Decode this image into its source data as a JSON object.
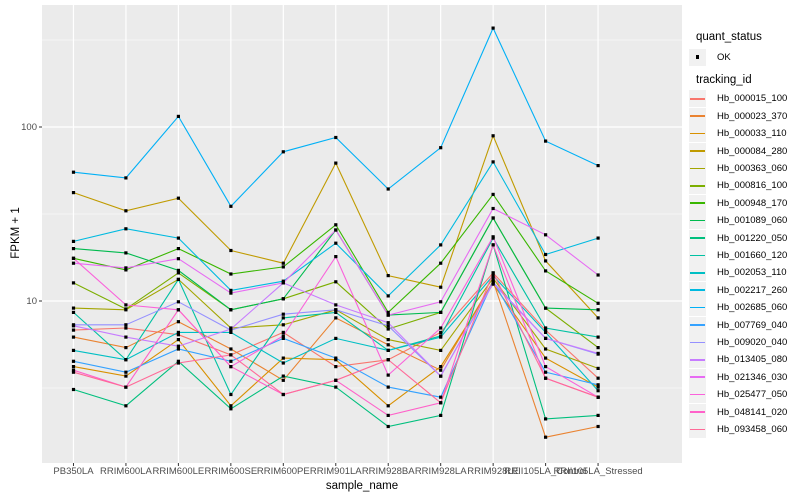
{
  "colors": {
    "page_bg": "#FFFFFF",
    "panel_bg": "#EBEBEB",
    "grid": "#FFFFFF",
    "axis_text": "#4D4D4D",
    "tick_mark": "#333333",
    "point": "#000000",
    "legend_key_bg": "#F1F1F1"
  },
  "legend": {
    "quant_status_title": "quant_status",
    "quant_status_items": [
      {
        "label": "OK",
        "marker": "black-point"
      }
    ],
    "tracking_title": "tracking_id"
  },
  "chart_data": {
    "type": "line",
    "title": "",
    "xlabel": "sample_name",
    "ylabel": "FPKM + 1",
    "y_scale": "log10",
    "y_ticks": [
      10,
      100
    ],
    "y_tick_labels": [
      "10",
      "100"
    ],
    "y_minor_ticks": [
      3.162,
      31.62,
      316.2
    ],
    "ylim": [
      1.17,
      500
    ],
    "grid": "on",
    "legend_position": "right",
    "point_marker": "small-black-square",
    "categories": [
      "PB350LA",
      "RRIM600LA",
      "RRIM600LE",
      "RRIM600SE",
      "RRIM600PE",
      "RRIM901LA",
      "RRIM928BA",
      "RRIM928LA",
      "RRIM928LE",
      "RRII105LA_Control",
      "RRII105LA_Stressed"
    ],
    "series": [
      {
        "name": "Hb_000015_100",
        "color": "#F8766D",
        "values": [
          6.8,
          7.0,
          6.4,
          4.9,
          6.6,
          4.2,
          4.6,
          6.6,
          14.5,
          6.8,
          3.6
        ]
      },
      {
        "name": "Hb_000023_370",
        "color": "#EA8331",
        "values": [
          6.2,
          5.4,
          7.6,
          5.3,
          3.5,
          8.0,
          5.6,
          4.0,
          13.0,
          1.65,
          1.9
        ]
      },
      {
        "name": "Hb_000033_110",
        "color": "#D89000",
        "values": [
          4.2,
          3.7,
          6.0,
          2.5,
          4.7,
          4.6,
          2.5,
          4.2,
          12.5,
          4.7,
          3.2
        ]
      },
      {
        "name": "Hb_000084_280",
        "color": "#C09B00",
        "values": [
          42,
          33,
          39,
          19.5,
          16.5,
          62,
          14,
          12,
          89,
          17,
          8.0
        ]
      },
      {
        "name": "Hb_000363_060",
        "color": "#A3A500",
        "values": [
          9.1,
          8.9,
          13.3,
          7.0,
          7.3,
          8.9,
          6.0,
          5.2,
          13.5,
          5.3,
          4.1
        ]
      },
      {
        "name": "Hb_000816_100",
        "color": "#7CAE00",
        "values": [
          12.7,
          9.0,
          14.5,
          8.9,
          10.3,
          12.9,
          6.9,
          8.6,
          30,
          9.1,
          5.4
        ]
      },
      {
        "name": "Hb_000948_170",
        "color": "#39B600",
        "values": [
          17.6,
          15.1,
          20,
          14.3,
          15.7,
          27.4,
          8.6,
          16.5,
          41,
          14.9,
          9.7
        ]
      },
      {
        "name": "Hb_001089_060",
        "color": "#00BB4E",
        "values": [
          20,
          18.9,
          15.0,
          8.9,
          10.3,
          25.6,
          8.3,
          8.6,
          30,
          9.1,
          8.9
        ]
      },
      {
        "name": "Hb_001220_050",
        "color": "#00BF7D",
        "values": [
          3.1,
          2.5,
          4.5,
          2.4,
          3.7,
          3.2,
          1.9,
          2.2,
          21,
          2.1,
          2.2
        ]
      },
      {
        "name": "Hb_001660_120",
        "color": "#00C1A3",
        "values": [
          8.6,
          4.6,
          13.3,
          2.9,
          8.0,
          8.6,
          5.2,
          6.3,
          23,
          7.0,
          6.2
        ]
      },
      {
        "name": "Hb_002053_110",
        "color": "#00BFC4",
        "values": [
          5.2,
          4.6,
          6.6,
          6.6,
          4.4,
          6.1,
          5.2,
          6.2,
          14,
          6.6,
          3.05
        ]
      },
      {
        "name": "Hb_002217_260",
        "color": "#00BAE0",
        "values": [
          22,
          26,
          23,
          11.5,
          13,
          21.5,
          10.7,
          21,
          63,
          18.5,
          23
        ]
      },
      {
        "name": "Hb_002685_060",
        "color": "#00B0F6",
        "values": [
          55,
          51,
          115,
          35,
          72,
          87,
          44,
          76,
          370,
          83,
          60
        ]
      },
      {
        "name": "Hb_007769_040",
        "color": "#35A2FF",
        "values": [
          4.5,
          3.9,
          5.3,
          4.5,
          6.1,
          4.7,
          3.2,
          2.8,
          13,
          3.9,
          3.3
        ]
      },
      {
        "name": "Hb_009020_040",
        "color": "#9590FF",
        "values": [
          7.3,
          7.3,
          9.9,
          6.8,
          8.4,
          8.9,
          7.2,
          3.7,
          12.8,
          6.1,
          4.95
        ]
      },
      {
        "name": "Hb_013405_080",
        "color": "#C77CFF",
        "values": [
          7.2,
          6.2,
          5.5,
          6.9,
          12.7,
          9.5,
          7.5,
          3.7,
          12.6,
          6.1,
          5.0
        ]
      },
      {
        "name": "Hb_021346_030",
        "color": "#E76BF3",
        "values": [
          16.5,
          15.5,
          17.5,
          11.1,
          12.7,
          25.6,
          8.3,
          9.9,
          34,
          24,
          14.1
        ]
      },
      {
        "name": "Hb_025477_050",
        "color": "#FA62DB",
        "values": [
          17.6,
          9.5,
          8.9,
          4.2,
          6.3,
          18,
          3.75,
          7.0,
          23.4,
          4.2,
          2.8
        ]
      },
      {
        "name": "Hb_048141_020",
        "color": "#FF61C9",
        "values": [
          4.0,
          3.2,
          8.9,
          4.2,
          2.9,
          3.5,
          2.2,
          2.6,
          21,
          3.6,
          2.8
        ]
      },
      {
        "name": "Hb_093458_060",
        "color": "#FF6A98",
        "values": [
          3.9,
          3.2,
          4.4,
          4.9,
          2.9,
          3.5,
          4.6,
          2.6,
          14.5,
          3.6,
          2.8
        ]
      }
    ]
  }
}
